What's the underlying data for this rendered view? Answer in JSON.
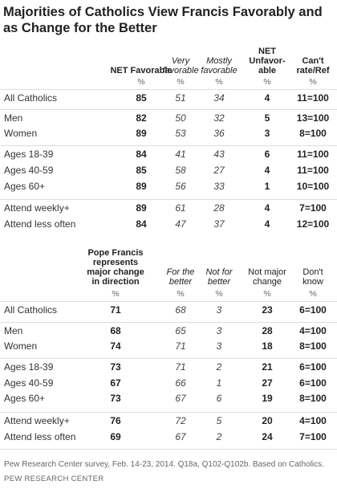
{
  "title": "Majorities of Catholics View Francis Favorably and as Change for the Better",
  "table1": {
    "headers": [
      "NET Favorable",
      "Very favorable",
      "Mostly favorable",
      "NET Unfavor-able",
      "Can't rate/Ref"
    ],
    "header_lines": {
      "net_fav": [
        "NET Favorable"
      ],
      "very": [
        "Very",
        "favorable"
      ],
      "mostly": [
        "Mostly",
        "favorable"
      ],
      "net_unfav": [
        "NET",
        "Unfavor-",
        "able"
      ],
      "cant": [
        "Can't",
        "rate/Ref"
      ]
    },
    "pct_row": [
      "%",
      "%",
      "%",
      "%",
      "%"
    ],
    "rows": [
      {
        "label": "All Catholics",
        "v": [
          "85",
          "51",
          "34",
          "4",
          "11=100"
        ]
      },
      {
        "label": "Men",
        "v": [
          "82",
          "50",
          "32",
          "5",
          "13=100"
        ]
      },
      {
        "label": "Women",
        "v": [
          "89",
          "53",
          "36",
          "3",
          "8=100"
        ]
      },
      {
        "label": "Ages 18-39",
        "v": [
          "84",
          "41",
          "43",
          "6",
          "11=100"
        ]
      },
      {
        "label": "Ages 40-59",
        "v": [
          "85",
          "58",
          "27",
          "4",
          "11=100"
        ]
      },
      {
        "label": "Ages 60+",
        "v": [
          "89",
          "56",
          "33",
          "1",
          "10=100"
        ]
      },
      {
        "label": "Attend weekly+",
        "v": [
          "89",
          "61",
          "28",
          "4",
          "7=100"
        ]
      },
      {
        "label": "Attend less often",
        "v": [
          "84",
          "47",
          "37",
          "4",
          "12=100"
        ]
      }
    ]
  },
  "table2": {
    "header_lines": {
      "pope": [
        "Pope Francis",
        "represents",
        "major change",
        "in direction"
      ],
      "better": [
        "For the",
        "better"
      ],
      "notbetter": [
        "Not for",
        "better"
      ],
      "notmajor": [
        "Not major",
        "change"
      ],
      "dontknow": [
        "Don't",
        "know"
      ]
    },
    "pct_row": [
      "%",
      "%",
      "%",
      "%",
      "%"
    ],
    "rows": [
      {
        "label": "All Catholics",
        "v": [
          "71",
          "68",
          "3",
          "23",
          "6=100"
        ]
      },
      {
        "label": "Men",
        "v": [
          "68",
          "65",
          "3",
          "28",
          "4=100"
        ]
      },
      {
        "label": "Women",
        "v": [
          "74",
          "71",
          "3",
          "18",
          "8=100"
        ]
      },
      {
        "label": "Ages 18-39",
        "v": [
          "73",
          "71",
          "2",
          "21",
          "6=100"
        ]
      },
      {
        "label": "Ages 40-59",
        "v": [
          "67",
          "66",
          "1",
          "27",
          "6=100"
        ]
      },
      {
        "label": "Ages 60+",
        "v": [
          "73",
          "67",
          "6",
          "19",
          "8=100"
        ]
      },
      {
        "label": "Attend weekly+",
        "v": [
          "76",
          "72",
          "5",
          "20",
          "4=100"
        ]
      },
      {
        "label": "Attend less often",
        "v": [
          "69",
          "67",
          "2",
          "24",
          "7=100"
        ]
      }
    ]
  },
  "note": "Pew Research Center survey, Feb. 14-23, 2014. Q18a, Q102-Q102b. Based on Catholics.",
  "source": "PEW RESEARCH CENTER"
}
